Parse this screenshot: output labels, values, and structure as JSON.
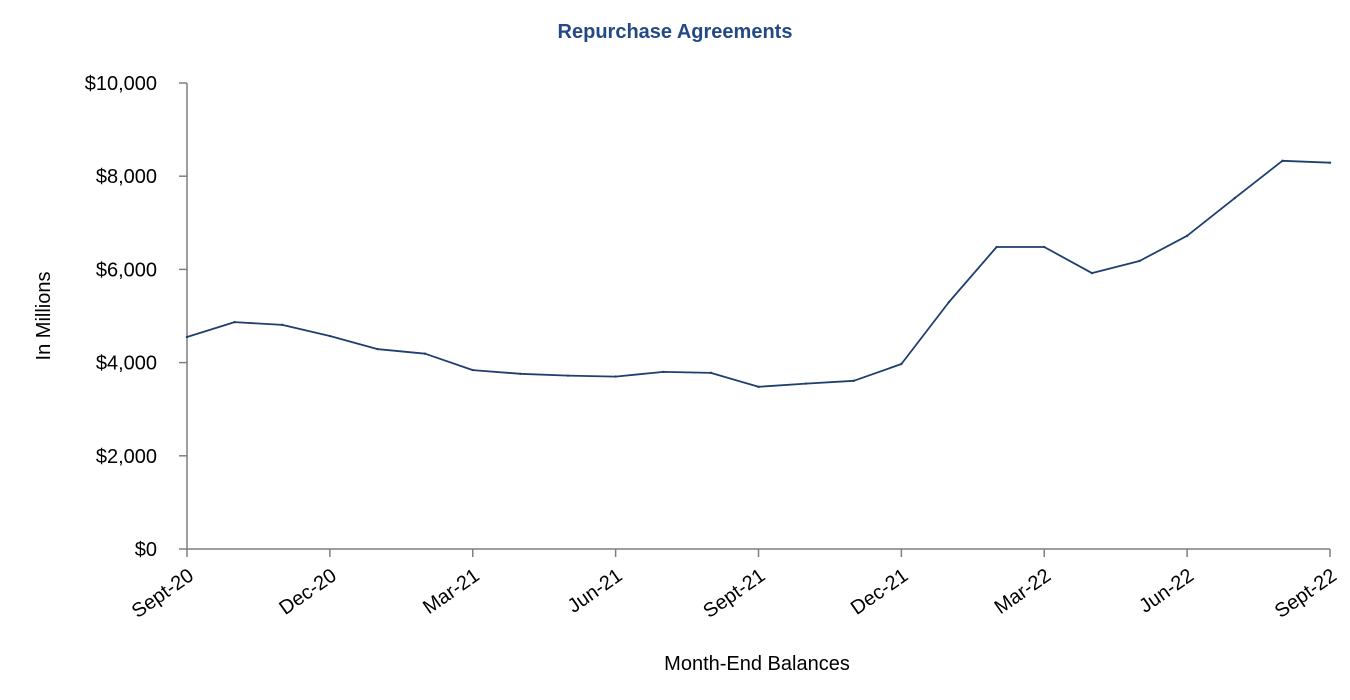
{
  "chart_data": {
    "type": "line",
    "title": "Repurchase Agreements",
    "xlabel": "Month-End Balances",
    "ylabel": "In Millions",
    "ylim": [
      0,
      10000
    ],
    "yticks": [
      0,
      2000,
      4000,
      6000,
      8000,
      10000
    ],
    "ytick_labels": [
      "$0",
      "$2,000",
      "$4,000",
      "$6,000",
      "$8,000",
      "$10,000"
    ],
    "x_tick_labels": [
      "Sept-20",
      "Dec-20",
      "Mar-21",
      "Jun-21",
      "Sept-21",
      "Dec-21",
      "Mar-22",
      "Jun-22",
      "Sept-22"
    ],
    "x_tick_every": 3,
    "grid": false,
    "colors": {
      "line": "#1f3f6e",
      "title": "#244a85",
      "axis": "#7f7f7f"
    },
    "series": [
      {
        "name": "Repurchase Agreements",
        "months": [
          "Sept-20",
          "Oct-20",
          "Nov-20",
          "Dec-20",
          "Jan-21",
          "Feb-21",
          "Mar-21",
          "Apr-21",
          "May-21",
          "Jun-21",
          "Jul-21",
          "Aug-21",
          "Sept-21",
          "Oct-21",
          "Nov-21",
          "Dec-21",
          "Jan-22",
          "Feb-22",
          "Mar-22",
          "Apr-22",
          "May-22",
          "Jun-22",
          "Jul-22",
          "Aug-22",
          "Sept-22"
        ],
        "values": [
          4550,
          4870,
          4810,
          4570,
          4290,
          4190,
          3840,
          3760,
          3720,
          3700,
          3800,
          3780,
          3480,
          3550,
          3610,
          3970,
          5300,
          6480,
          6480,
          5920,
          6180,
          6720,
          7530,
          8330,
          8290
        ]
      }
    ]
  }
}
